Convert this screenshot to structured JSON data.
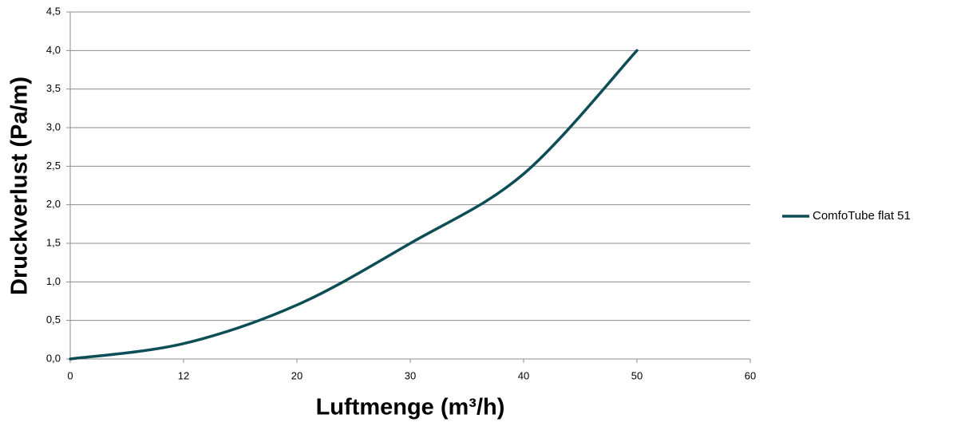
{
  "chart_data": {
    "type": "line",
    "xlabel": "Luftmenge (m³/h)",
    "ylabel": "Druckverlust (Pa/m)",
    "categories": [
      "0",
      "12",
      "20",
      "30",
      "40",
      "50",
      "60"
    ],
    "series": [
      {
        "name": "ComfoTube flat 51",
        "color": "#0d4d55",
        "values": [
          0,
          0.2,
          0.7,
          1.5,
          2.4,
          4.0,
          null
        ]
      }
    ],
    "ylim": [
      0,
      4.5
    ],
    "yticks": [
      {
        "value": 0,
        "label": "0,0"
      },
      {
        "value": 0.5,
        "label": "0,5"
      },
      {
        "value": 1,
        "label": "1,0"
      },
      {
        "value": 1.5,
        "label": "1,5"
      },
      {
        "value": 2,
        "label": "2,0"
      },
      {
        "value": 2.5,
        "label": "2,5"
      },
      {
        "value": 3,
        "label": "3,0"
      },
      {
        "value": 3.5,
        "label": "3,5"
      },
      {
        "value": 4,
        "label": "4,0"
      },
      {
        "value": 4.5,
        "label": "4,5"
      }
    ],
    "grid": true,
    "legend": "right"
  }
}
